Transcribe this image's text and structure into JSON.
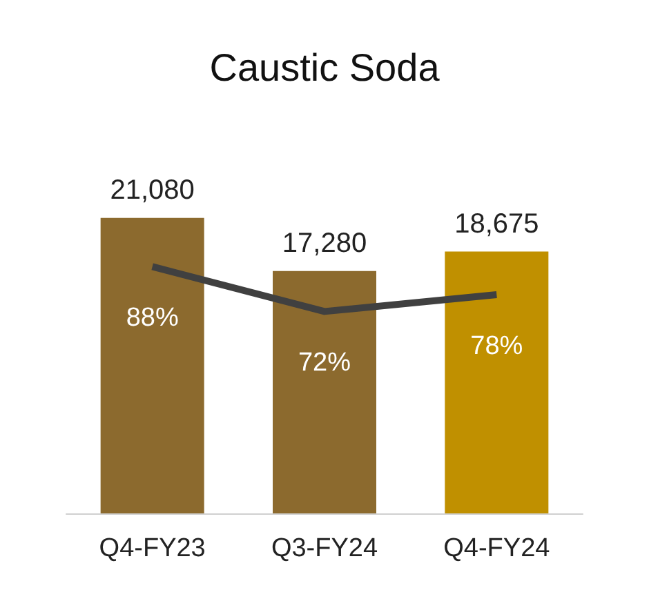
{
  "chart_data": {
    "type": "bar",
    "title": "Caustic Soda",
    "categories": [
      "Q4-FY23",
      "Q3-FY24",
      "Q4-FY24"
    ],
    "series": [
      {
        "values": [
          21080,
          17280,
          18675
        ],
        "colors": [
          "#8c6a2e",
          "#8c6a2e",
          "#c09000"
        ],
        "value_labels": [
          "21,080",
          "17,280",
          "18,675"
        ]
      },
      {
        "type": "line",
        "axis": "y2",
        "color": "#404040",
        "values": [
          88,
          72,
          78
        ],
        "value_labels": [
          "88%",
          "72%",
          "78%"
        ],
        "marker": "none"
      }
    ]
  }
}
